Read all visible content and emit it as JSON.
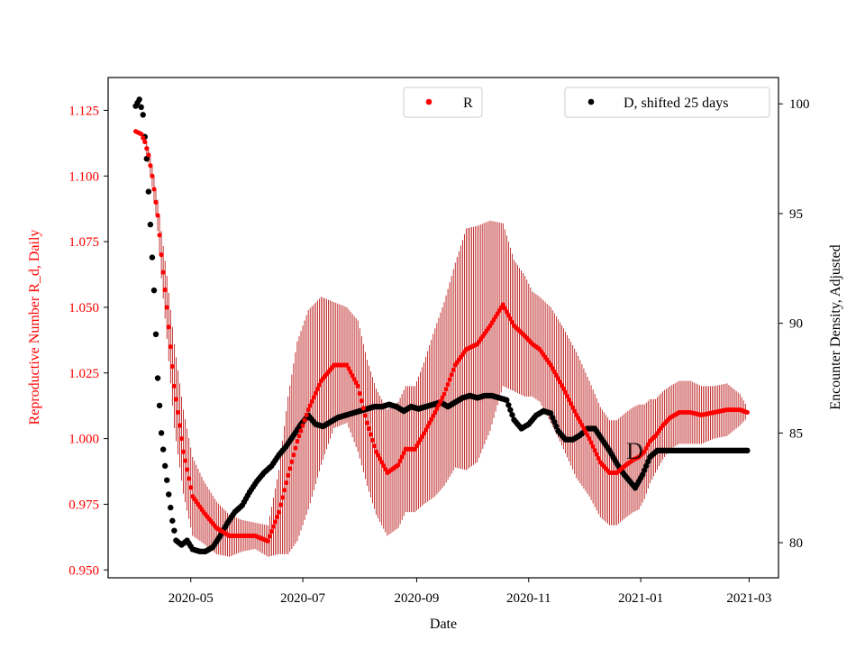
{
  "colors": {
    "r_series": "#ff0000",
    "r_errorbar": "#b30000",
    "d_series": "#000000",
    "right_axis": "#000000",
    "left_axis": "#ff0000",
    "background": "#ffffff"
  },
  "chart_data": {
    "type": "scatter",
    "title": "",
    "xlabel": "Date",
    "ylabel_left": "Reproductive Number R_d, Daily",
    "ylabel_right": "Encounter Density, Adjusted",
    "x_ticks": [
      "2020-05",
      "2020-07",
      "2020-09",
      "2020-11",
      "2021-01",
      "2021-03"
    ],
    "x_tick_days": [
      30,
      91,
      153,
      214,
      275,
      334
    ],
    "xlim_days": [
      -15,
      350
    ],
    "x_origin_date": "2020-04-01",
    "ylim_left": [
      0.947,
      1.1375
    ],
    "yticks_left": [
      "0.950",
      "0.975",
      "1.000",
      "1.025",
      "1.050",
      "1.075",
      "1.100",
      "1.125"
    ],
    "ylim_right": [
      78.4,
      101.2
    ],
    "yticks_right": [
      "80",
      "85",
      "90",
      "95",
      "100"
    ],
    "legends": {
      "r_label": "R",
      "d_label": "D, shifted 25 days"
    },
    "stray_label": "D",
    "series": [
      {
        "name": "R",
        "axis": "left",
        "color": "#ff0000",
        "marker": "dot",
        "has_error_bars": true,
        "day": [
          0,
          3,
          5,
          7,
          9,
          12,
          14,
          17,
          21,
          26,
          31,
          37,
          44,
          51,
          58,
          65,
          72,
          78,
          83,
          88,
          94,
          101,
          108,
          115,
          121,
          126,
          131,
          137,
          143,
          147,
          152,
          157,
          163,
          168,
          174,
          180,
          186,
          193,
          200,
          206,
          212,
          216,
          220,
          226,
          233,
          240,
          247,
          253,
          258,
          262,
          267,
          271,
          274,
          277,
          280,
          283,
          287,
          291,
          296,
          302,
          308,
          315,
          322,
          329,
          333
        ],
        "value": [
          1.117,
          1.116,
          1.113,
          1.108,
          1.1,
          1.085,
          1.07,
          1.05,
          1.02,
          0.995,
          0.978,
          0.972,
          0.966,
          0.963,
          0.963,
          0.963,
          0.961,
          0.972,
          0.986,
          0.999,
          1.011,
          1.022,
          1.028,
          1.028,
          1.02,
          1.006,
          0.995,
          0.987,
          0.99,
          0.996,
          0.996,
          1.002,
          1.01,
          1.017,
          1.028,
          1.034,
          1.036,
          1.043,
          1.051,
          1.043,
          1.039,
          1.036,
          1.034,
          1.028,
          1.019,
          1.009,
          1.0,
          0.991,
          0.987,
          0.987,
          0.99,
          0.992,
          0.993,
          0.995,
          0.999,
          1.001,
          1.005,
          1.008,
          1.01,
          1.01,
          1.009,
          1.01,
          1.011,
          1.011,
          1.01
        ],
        "error": [
          0.001,
          0.001,
          0.002,
          0.003,
          0.004,
          0.006,
          0.009,
          0.012,
          0.016,
          0.016,
          0.015,
          0.012,
          0.01,
          0.008,
          0.006,
          0.005,
          0.006,
          0.016,
          0.03,
          0.038,
          0.038,
          0.032,
          0.024,
          0.022,
          0.025,
          0.024,
          0.024,
          0.024,
          0.024,
          0.024,
          0.024,
          0.027,
          0.032,
          0.035,
          0.039,
          0.046,
          0.045,
          0.04,
          0.031,
          0.025,
          0.023,
          0.02,
          0.02,
          0.022,
          0.023,
          0.024,
          0.022,
          0.021,
          0.02,
          0.02,
          0.02,
          0.02,
          0.02,
          0.018,
          0.016,
          0.014,
          0.013,
          0.012,
          0.012,
          0.012,
          0.011,
          0.01,
          0.01,
          0.006,
          0.002
        ]
      },
      {
        "name": "D, shifted 25 days",
        "axis": "right",
        "color": "#000000",
        "marker": "dot",
        "has_error_bars": false,
        "day": [
          0,
          2,
          4,
          6,
          8,
          10,
          12,
          14,
          16,
          18,
          20,
          22,
          25,
          28,
          31,
          35,
          38,
          42,
          46,
          50,
          54,
          58,
          62,
          66,
          70,
          74,
          78,
          82,
          86,
          90,
          94,
          98,
          102,
          106,
          110,
          114,
          118,
          122,
          126,
          130,
          134,
          138,
          142,
          146,
          150,
          154,
          158,
          162,
          166,
          170,
          174,
          178,
          182,
          186,
          190,
          194,
          198,
          202,
          206,
          210,
          214,
          218,
          222,
          226,
          230,
          234,
          238,
          242,
          246,
          250,
          254,
          258,
          262,
          266,
          270,
          272,
          274,
          276,
          278,
          280,
          284,
          290,
          300,
          310,
          320,
          333
        ],
        "value": [
          99.9,
          100.2,
          99.5,
          97.5,
          94.5,
          91.5,
          87.5,
          85.0,
          83.5,
          82.2,
          81.0,
          80.1,
          79.9,
          80.1,
          79.7,
          79.6,
          79.6,
          79.8,
          80.3,
          80.9,
          81.4,
          81.7,
          82.3,
          82.8,
          83.2,
          83.5,
          84.0,
          84.4,
          84.9,
          85.4,
          85.8,
          85.4,
          85.3,
          85.5,
          85.7,
          85.8,
          85.9,
          86.0,
          86.1,
          86.2,
          86.2,
          86.3,
          86.2,
          86.0,
          86.2,
          86.1,
          86.2,
          86.3,
          86.4,
          86.2,
          86.4,
          86.6,
          86.7,
          86.6,
          86.7,
          86.7,
          86.6,
          86.5,
          85.6,
          85.2,
          85.4,
          85.8,
          86.0,
          85.9,
          85.1,
          84.7,
          84.7,
          84.9,
          85.2,
          85.2,
          84.7,
          84.2,
          83.6,
          83.1,
          82.7,
          82.5,
          82.8,
          83.1,
          83.5,
          83.9,
          84.2,
          84.2,
          84.2,
          84.2,
          84.2,
          84.2
        ]
      }
    ]
  }
}
